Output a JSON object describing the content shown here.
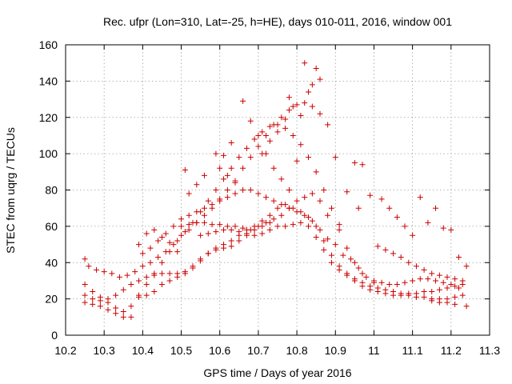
{
  "chart_data": {
    "type": "scatter",
    "title": "Rec. ufpr (Lon=310, Lat=-25, h=HE), days 010-011, 2016, window 001",
    "xlabel": "GPS time / Days of year 2016",
    "ylabel": "STEC from uqrg / TECUs",
    "xlim": [
      10.2,
      11.3
    ],
    "ylim": [
      0,
      160
    ],
    "xticks": [
      "10.2",
      "10.3",
      "10.4",
      "10.5",
      "10.6",
      "10.7",
      "10.8",
      "10.9",
      "11",
      "11.1",
      "11.2",
      "11.3"
    ],
    "yticks": [
      "0",
      "20",
      "40",
      "60",
      "80",
      "100",
      "120",
      "140",
      "160"
    ],
    "grid": true,
    "marker": "+",
    "series": [
      {
        "color": "#cc0000",
        "points": [
          [
            10.25,
            42
          ],
          [
            10.26,
            38
          ],
          [
            10.28,
            36
          ],
          [
            10.3,
            35
          ],
          [
            10.32,
            34
          ],
          [
            10.34,
            32
          ],
          [
            10.36,
            33
          ],
          [
            10.38,
            35
          ],
          [
            10.4,
            38
          ],
          [
            10.42,
            40
          ],
          [
            10.44,
            43
          ],
          [
            10.46,
            46
          ],
          [
            10.48,
            50
          ],
          [
            10.5,
            55
          ],
          [
            10.52,
            58
          ],
          [
            10.54,
            62
          ],
          [
            10.56,
            66
          ],
          [
            10.58,
            70
          ],
          [
            10.6,
            75
          ],
          [
            10.62,
            80
          ],
          [
            10.64,
            85
          ],
          [
            10.66,
            92
          ],
          [
            10.68,
            98
          ],
          [
            10.7,
            104
          ],
          [
            10.72,
            110
          ],
          [
            10.74,
            116
          ],
          [
            10.76,
            120
          ],
          [
            10.78,
            124
          ],
          [
            10.8,
            127
          ],
          [
            10.82,
            128
          ],
          [
            10.84,
            126
          ],
          [
            10.86,
            122
          ],
          [
            10.88,
            116
          ],
          [
            10.9,
            98
          ],
          [
            10.25,
            28
          ],
          [
            10.27,
            24
          ],
          [
            10.29,
            21
          ],
          [
            10.31,
            18
          ],
          [
            10.33,
            15
          ],
          [
            10.35,
            13
          ],
          [
            10.37,
            16
          ],
          [
            10.39,
            22
          ],
          [
            10.41,
            28
          ],
          [
            10.43,
            34
          ],
          [
            10.45,
            40
          ],
          [
            10.47,
            46
          ],
          [
            10.49,
            52
          ],
          [
            10.51,
            57
          ],
          [
            10.53,
            62
          ],
          [
            10.55,
            68
          ],
          [
            10.57,
            74
          ],
          [
            10.59,
            80
          ],
          [
            10.61,
            86
          ],
          [
            10.63,
            92
          ],
          [
            10.65,
            98
          ],
          [
            10.67,
            103
          ],
          [
            10.69,
            108
          ],
          [
            10.71,
            112
          ],
          [
            10.73,
            115
          ],
          [
            10.75,
            116
          ],
          [
            10.77,
            114
          ],
          [
            10.79,
            110
          ],
          [
            10.81,
            105
          ],
          [
            10.83,
            98
          ],
          [
            10.85,
            90
          ],
          [
            10.87,
            80
          ],
          [
            10.89,
            70
          ],
          [
            10.91,
            58
          ],
          [
            10.93,
            48
          ],
          [
            10.95,
            40
          ],
          [
            10.97,
            34
          ],
          [
            10.25,
            22
          ],
          [
            10.27,
            20
          ],
          [
            10.29,
            19
          ],
          [
            10.31,
            20
          ],
          [
            10.33,
            22
          ],
          [
            10.35,
            25
          ],
          [
            10.37,
            28
          ],
          [
            10.39,
            30
          ],
          [
            10.41,
            32
          ],
          [
            10.43,
            33
          ],
          [
            10.45,
            34
          ],
          [
            10.47,
            34
          ],
          [
            10.49,
            34
          ],
          [
            10.51,
            35
          ],
          [
            10.53,
            37
          ],
          [
            10.55,
            41
          ],
          [
            10.57,
            45
          ],
          [
            10.59,
            48
          ],
          [
            10.61,
            48
          ],
          [
            10.63,
            49
          ],
          [
            10.65,
            52
          ],
          [
            10.67,
            55
          ],
          [
            10.69,
            58
          ],
          [
            10.71,
            60
          ],
          [
            10.73,
            62
          ],
          [
            10.75,
            60
          ],
          [
            10.77,
            60
          ],
          [
            10.79,
            61
          ],
          [
            10.81,
            62
          ],
          [
            10.83,
            60
          ],
          [
            10.85,
            54
          ],
          [
            10.87,
            47
          ],
          [
            10.89,
            40
          ],
          [
            10.91,
            36
          ],
          [
            10.93,
            33
          ],
          [
            10.95,
            30
          ],
          [
            10.97,
            27
          ],
          [
            10.99,
            25
          ],
          [
            11.01,
            24
          ],
          [
            11.03,
            23
          ],
          [
            11.05,
            22
          ],
          [
            11.07,
            22
          ],
          [
            11.09,
            22
          ],
          [
            11.11,
            21
          ],
          [
            11.13,
            21
          ],
          [
            11.15,
            20
          ],
          [
            11.17,
            20
          ],
          [
            11.19,
            20
          ],
          [
            11.21,
            21
          ],
          [
            11.23,
            22
          ],
          [
            10.25,
            18
          ],
          [
            10.27,
            17
          ],
          [
            10.29,
            16
          ],
          [
            10.31,
            14
          ],
          [
            10.33,
            12
          ],
          [
            10.35,
            10
          ],
          [
            10.37,
            10
          ],
          [
            10.39,
            21
          ],
          [
            10.41,
            22
          ],
          [
            10.43,
            24
          ],
          [
            10.45,
            28
          ],
          [
            10.47,
            30
          ],
          [
            10.49,
            32
          ],
          [
            10.51,
            34
          ],
          [
            10.53,
            38
          ],
          [
            10.55,
            42
          ],
          [
            10.57,
            45
          ],
          [
            10.59,
            47
          ],
          [
            10.61,
            50
          ],
          [
            10.63,
            52
          ],
          [
            10.65,
            55
          ],
          [
            10.67,
            58
          ],
          [
            10.69,
            60
          ],
          [
            10.71,
            63
          ],
          [
            10.73,
            66
          ],
          [
            10.75,
            70
          ],
          [
            10.77,
            72
          ],
          [
            10.79,
            70
          ],
          [
            10.81,
            68
          ],
          [
            10.83,
            65
          ],
          [
            10.85,
            60
          ],
          [
            10.87,
            52
          ],
          [
            10.89,
            44
          ],
          [
            10.91,
            38
          ],
          [
            10.93,
            34
          ],
          [
            10.95,
            31
          ],
          [
            10.97,
            29
          ],
          [
            10.99,
            27
          ],
          [
            11.01,
            26
          ],
          [
            11.03,
            25
          ],
          [
            11.05,
            24
          ],
          [
            11.07,
            23
          ],
          [
            11.09,
            23
          ],
          [
            11.11,
            23
          ],
          [
            11.13,
            24
          ],
          [
            11.15,
            24
          ],
          [
            11.17,
            25
          ],
          [
            11.19,
            26
          ],
          [
            11.21,
            27
          ],
          [
            11.23,
            28
          ],
          [
            10.4,
            45
          ],
          [
            10.42,
            48
          ],
          [
            10.44,
            52
          ],
          [
            10.46,
            56
          ],
          [
            10.48,
            60
          ],
          [
            10.5,
            64
          ],
          [
            10.52,
            66
          ],
          [
            10.54,
            68
          ],
          [
            10.56,
            70
          ],
          [
            10.58,
            72
          ],
          [
            10.6,
            74
          ],
          [
            10.62,
            76
          ],
          [
            10.64,
            78
          ],
          [
            10.66,
            80
          ],
          [
            10.68,
            80
          ],
          [
            10.7,
            78
          ],
          [
            10.72,
            76
          ],
          [
            10.74,
            74
          ],
          [
            10.76,
            72
          ],
          [
            10.78,
            70
          ],
          [
            10.8,
            68
          ],
          [
            10.82,
            66
          ],
          [
            10.84,
            63
          ],
          [
            10.86,
            58
          ],
          [
            10.88,
            53
          ],
          [
            10.5,
            60
          ],
          [
            10.52,
            61
          ],
          [
            10.54,
            62
          ],
          [
            10.56,
            62
          ],
          [
            10.58,
            61
          ],
          [
            10.6,
            61
          ],
          [
            10.62,
            60
          ],
          [
            10.64,
            60
          ],
          [
            10.66,
            59
          ],
          [
            10.68,
            58
          ],
          [
            10.7,
            60
          ],
          [
            10.72,
            62
          ],
          [
            10.74,
            64
          ],
          [
            10.76,
            66
          ],
          [
            10.78,
            70
          ],
          [
            10.8,
            74
          ],
          [
            10.82,
            76
          ],
          [
            10.84,
            78
          ],
          [
            10.86,
            74
          ],
          [
            10.88,
            66
          ],
          [
            10.55,
            55
          ],
          [
            10.57,
            56
          ],
          [
            10.59,
            57
          ],
          [
            10.61,
            58
          ],
          [
            10.63,
            58
          ],
          [
            10.65,
            57
          ],
          [
            10.67,
            56
          ],
          [
            10.69,
            55
          ],
          [
            10.71,
            56
          ],
          [
            10.73,
            58
          ],
          [
            10.66,
            129
          ],
          [
            10.68,
            118
          ],
          [
            10.7,
            110
          ],
          [
            10.72,
            100
          ],
          [
            10.74,
            92
          ],
          [
            10.76,
            86
          ],
          [
            10.78,
            80
          ],
          [
            10.8,
            96
          ],
          [
            10.82,
            150
          ],
          [
            10.85,
            147
          ],
          [
            10.86,
            141
          ],
          [
            10.84,
            138
          ],
          [
            10.83,
            134
          ],
          [
            10.81,
            121
          ],
          [
            10.78,
            131
          ],
          [
            10.79,
            126
          ],
          [
            10.77,
            119
          ],
          [
            10.75,
            112
          ],
          [
            10.73,
            107
          ],
          [
            10.71,
            100
          ],
          [
            10.63,
            106
          ],
          [
            10.61,
            99
          ],
          [
            10.59,
            100
          ],
          [
            10.6,
            92
          ],
          [
            10.62,
            88
          ],
          [
            10.64,
            84
          ],
          [
            10.56,
            88
          ],
          [
            10.54,
            83
          ],
          [
            10.52,
            78
          ],
          [
            10.51,
            91
          ],
          [
            10.47,
            51
          ],
          [
            10.49,
            46
          ],
          [
            10.45,
            54
          ],
          [
            10.43,
            58
          ],
          [
            10.41,
            56
          ],
          [
            10.39,
            50
          ],
          [
            10.95,
            95
          ],
          [
            10.97,
            94
          ],
          [
            10.93,
            79
          ],
          [
            10.91,
            61
          ],
          [
            10.96,
            70
          ],
          [
            10.99,
            77
          ],
          [
            11.02,
            75
          ],
          [
            11.04,
            70
          ],
          [
            11.06,
            65
          ],
          [
            11.08,
            60
          ],
          [
            11.1,
            55
          ],
          [
            11.12,
            76
          ],
          [
            11.14,
            62
          ],
          [
            11.16,
            70
          ],
          [
            11.18,
            59
          ],
          [
            11.2,
            58
          ],
          [
            11.22,
            43
          ],
          [
            11.24,
            38
          ],
          [
            11.01,
            49
          ],
          [
            11.03,
            47
          ],
          [
            11.05,
            45
          ],
          [
            11.07,
            43
          ],
          [
            11.09,
            40
          ],
          [
            11.11,
            38
          ],
          [
            11.13,
            36
          ],
          [
            11.15,
            34
          ],
          [
            11.17,
            33
          ],
          [
            11.19,
            32
          ],
          [
            11.21,
            31
          ],
          [
            11.23,
            30
          ],
          [
            11.0,
            30
          ],
          [
            11.02,
            29
          ],
          [
            11.04,
            28
          ],
          [
            11.06,
            28
          ],
          [
            11.08,
            29
          ],
          [
            11.1,
            30
          ],
          [
            11.12,
            31
          ],
          [
            11.14,
            31
          ],
          [
            11.16,
            30
          ],
          [
            11.18,
            29
          ],
          [
            11.2,
            28
          ],
          [
            11.22,
            26
          ],
          [
            11.24,
            16
          ],
          [
            11.21,
            17
          ],
          [
            11.19,
            18
          ],
          [
            11.17,
            18
          ],
          [
            11.15,
            19
          ],
          [
            10.9,
            50
          ],
          [
            10.92,
            44
          ],
          [
            10.94,
            42
          ],
          [
            10.96,
            37
          ],
          [
            10.98,
            32
          ],
          [
            11.0,
            29
          ]
        ]
      }
    ]
  }
}
